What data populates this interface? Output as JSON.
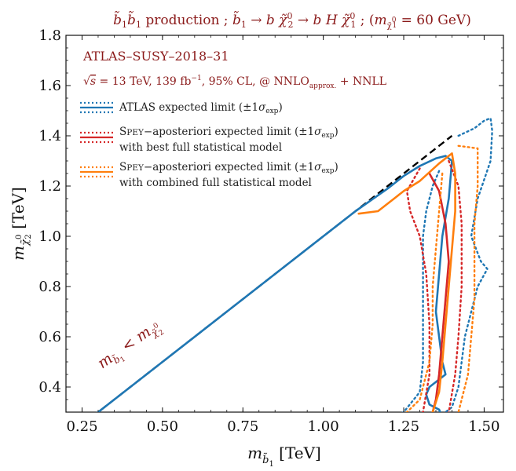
{
  "chart_data": {
    "type": "line",
    "title": "b̃₁b̃₁ production ; b̃₁ → b χ̃₂⁰ → b H χ̃₁⁰ ; (m χ̃₁⁰ = 60 GeV)",
    "xlabel": "m b̃₁ [TeV]",
    "ylabel": "m χ̃₂⁰ [TeV]",
    "xlim": [
      0.2,
      1.56
    ],
    "ylim": [
      0.3,
      1.8
    ],
    "xticks": [
      "0.25",
      "0.50",
      "0.75",
      "1.00",
      "1.25",
      "1.50"
    ],
    "yticks": [
      "0.4",
      "0.6",
      "0.8",
      "1.0",
      "1.2",
      "1.4",
      "1.6",
      "1.8"
    ],
    "grid": false,
    "legend_position": "top-left",
    "annotations": {
      "analysis": "ATLAS–SUSY–2018–31",
      "conditions": "√s = 13 TeV, 139 fb⁻¹, 95% CL, @ NNLOapprox. + NNLL",
      "diagonal": "m b̃₁ < m χ̃₂⁰"
    },
    "legend": [
      {
        "label": "ATLAS expected limit (±1σexp)",
        "color": "#1f77b4"
      },
      {
        "label": "Spey−aposteriori expected limit (±1σexp)",
        "label2": "with best full statistical model",
        "color": "#d62728"
      },
      {
        "label": "Spey−aposteriori expected limit (±1σexp)",
        "label2": "with combined full statistical model",
        "color": "#ff7f0e"
      }
    ],
    "kinematic_limit": {
      "x": [
        0.2,
        1.4
      ],
      "y": [
        0.2,
        1.4
      ],
      "color": "#000000"
    },
    "series": [
      {
        "id": "atlas-central",
        "color": "#1f77b4",
        "style": "solid",
        "x": [
          0.2,
          0.3,
          0.5,
          0.7,
          0.9,
          1.1,
          1.2,
          1.25,
          1.3,
          1.35,
          1.38,
          1.4,
          1.39,
          1.37,
          1.36,
          1.35,
          1.36,
          1.37,
          1.38,
          1.36,
          1.33,
          1.32,
          1.33,
          1.36,
          1.37,
          1.33,
          1.27,
          1.18,
          1.1,
          1.06
        ],
        "y": [
          0.2,
          0.3,
          0.5,
          0.7,
          0.9,
          1.1,
          1.19,
          1.24,
          1.28,
          1.31,
          1.32,
          1.3,
          1.15,
          1.0,
          0.85,
          0.7,
          0.6,
          0.5,
          0.45,
          0.43,
          0.4,
          0.37,
          0.33,
          0.31,
          0.28,
          0.24,
          0.22,
          0.21,
          0.2,
          0.2
        ]
      },
      {
        "id": "atlas-plus1sigma",
        "color": "#1f77b4",
        "style": "dotted",
        "x": [
          1.42,
          1.47,
          1.5,
          1.52,
          1.525,
          1.52,
          1.48,
          1.46,
          1.49,
          1.51,
          1.48,
          1.44,
          1.43,
          1.42,
          1.4,
          1.35,
          1.2,
          1.0,
          0.9
        ],
        "y": [
          1.4,
          1.43,
          1.46,
          1.47,
          1.42,
          1.3,
          1.15,
          1.0,
          0.9,
          0.87,
          0.8,
          0.6,
          0.5,
          0.4,
          0.32,
          0.27,
          0.22,
          0.21,
          0.2
        ]
      },
      {
        "id": "atlas-minus1sigma",
        "color": "#1f77b4",
        "style": "dotted",
        "x": [
          1.36,
          1.34,
          1.32,
          1.31,
          1.31,
          1.31,
          1.31,
          1.3,
          1.25,
          1.15,
          1.05
        ],
        "y": [
          1.26,
          1.2,
          1.1,
          1.0,
          0.85,
          0.65,
          0.5,
          0.38,
          0.3,
          0.24,
          0.2
        ]
      },
      {
        "id": "spey-best-central",
        "color": "#d62728",
        "style": "solid",
        "x": [
          1.33,
          1.36,
          1.38,
          1.39,
          1.38,
          1.37,
          1.36,
          1.35,
          1.34,
          1.32,
          1.27,
          1.15
        ],
        "y": [
          1.25,
          1.18,
          1.05,
          0.9,
          0.75,
          0.6,
          0.45,
          0.35,
          0.3,
          0.26,
          0.23,
          0.2
        ]
      },
      {
        "id": "spey-best-plus1sigma",
        "color": "#d62728",
        "style": "dotted",
        "x": [
          1.39,
          1.42,
          1.43,
          1.43,
          1.42,
          1.41,
          1.39,
          1.3,
          1.2
        ],
        "y": [
          1.3,
          1.2,
          1.05,
          0.8,
          0.6,
          0.45,
          0.3,
          0.22,
          0.2
        ]
      },
      {
        "id": "spey-best-minus1sigma",
        "color": "#d62728",
        "style": "dotted",
        "x": [
          1.3,
          1.26,
          1.27,
          1.3,
          1.32,
          1.33,
          1.33,
          1.31,
          1.25,
          1.1
        ],
        "y": [
          1.27,
          1.18,
          1.1,
          1.0,
          0.85,
          0.65,
          0.45,
          0.3,
          0.24,
          0.2
        ]
      },
      {
        "id": "spey-combined-central",
        "color": "#ff7f0e",
        "style": "solid",
        "x": [
          1.11,
          1.17,
          1.22,
          1.25,
          1.3,
          1.36,
          1.4,
          1.41,
          1.41,
          1.4,
          1.39,
          1.38,
          1.37,
          1.36,
          1.34,
          1.31,
          1.25,
          1.19
        ],
        "y": [
          1.09,
          1.1,
          1.15,
          1.18,
          1.22,
          1.29,
          1.33,
          1.25,
          1.1,
          0.95,
          0.8,
          0.65,
          0.5,
          0.38,
          0.3,
          0.25,
          0.22,
          0.2
        ]
      },
      {
        "id": "spey-combined-plus1sigma",
        "color": "#ff7f0e",
        "style": "dotted",
        "x": [
          1.42,
          1.48,
          1.48,
          1.47,
          1.47,
          1.47,
          1.46,
          1.45,
          1.42,
          1.3
        ],
        "y": [
          1.36,
          1.35,
          1.2,
          1.05,
          0.9,
          0.75,
          0.6,
          0.45,
          0.3,
          0.2
        ]
      },
      {
        "id": "spey-combined-minus1sigma",
        "color": "#ff7f0e",
        "style": "dotted",
        "x": [
          1.37,
          1.36,
          1.35,
          1.34,
          1.34,
          1.33,
          1.3,
          1.22,
          1.12
        ],
        "y": [
          1.25,
          1.1,
          0.95,
          0.8,
          0.65,
          0.5,
          0.35,
          0.25,
          0.2
        ]
      }
    ]
  }
}
